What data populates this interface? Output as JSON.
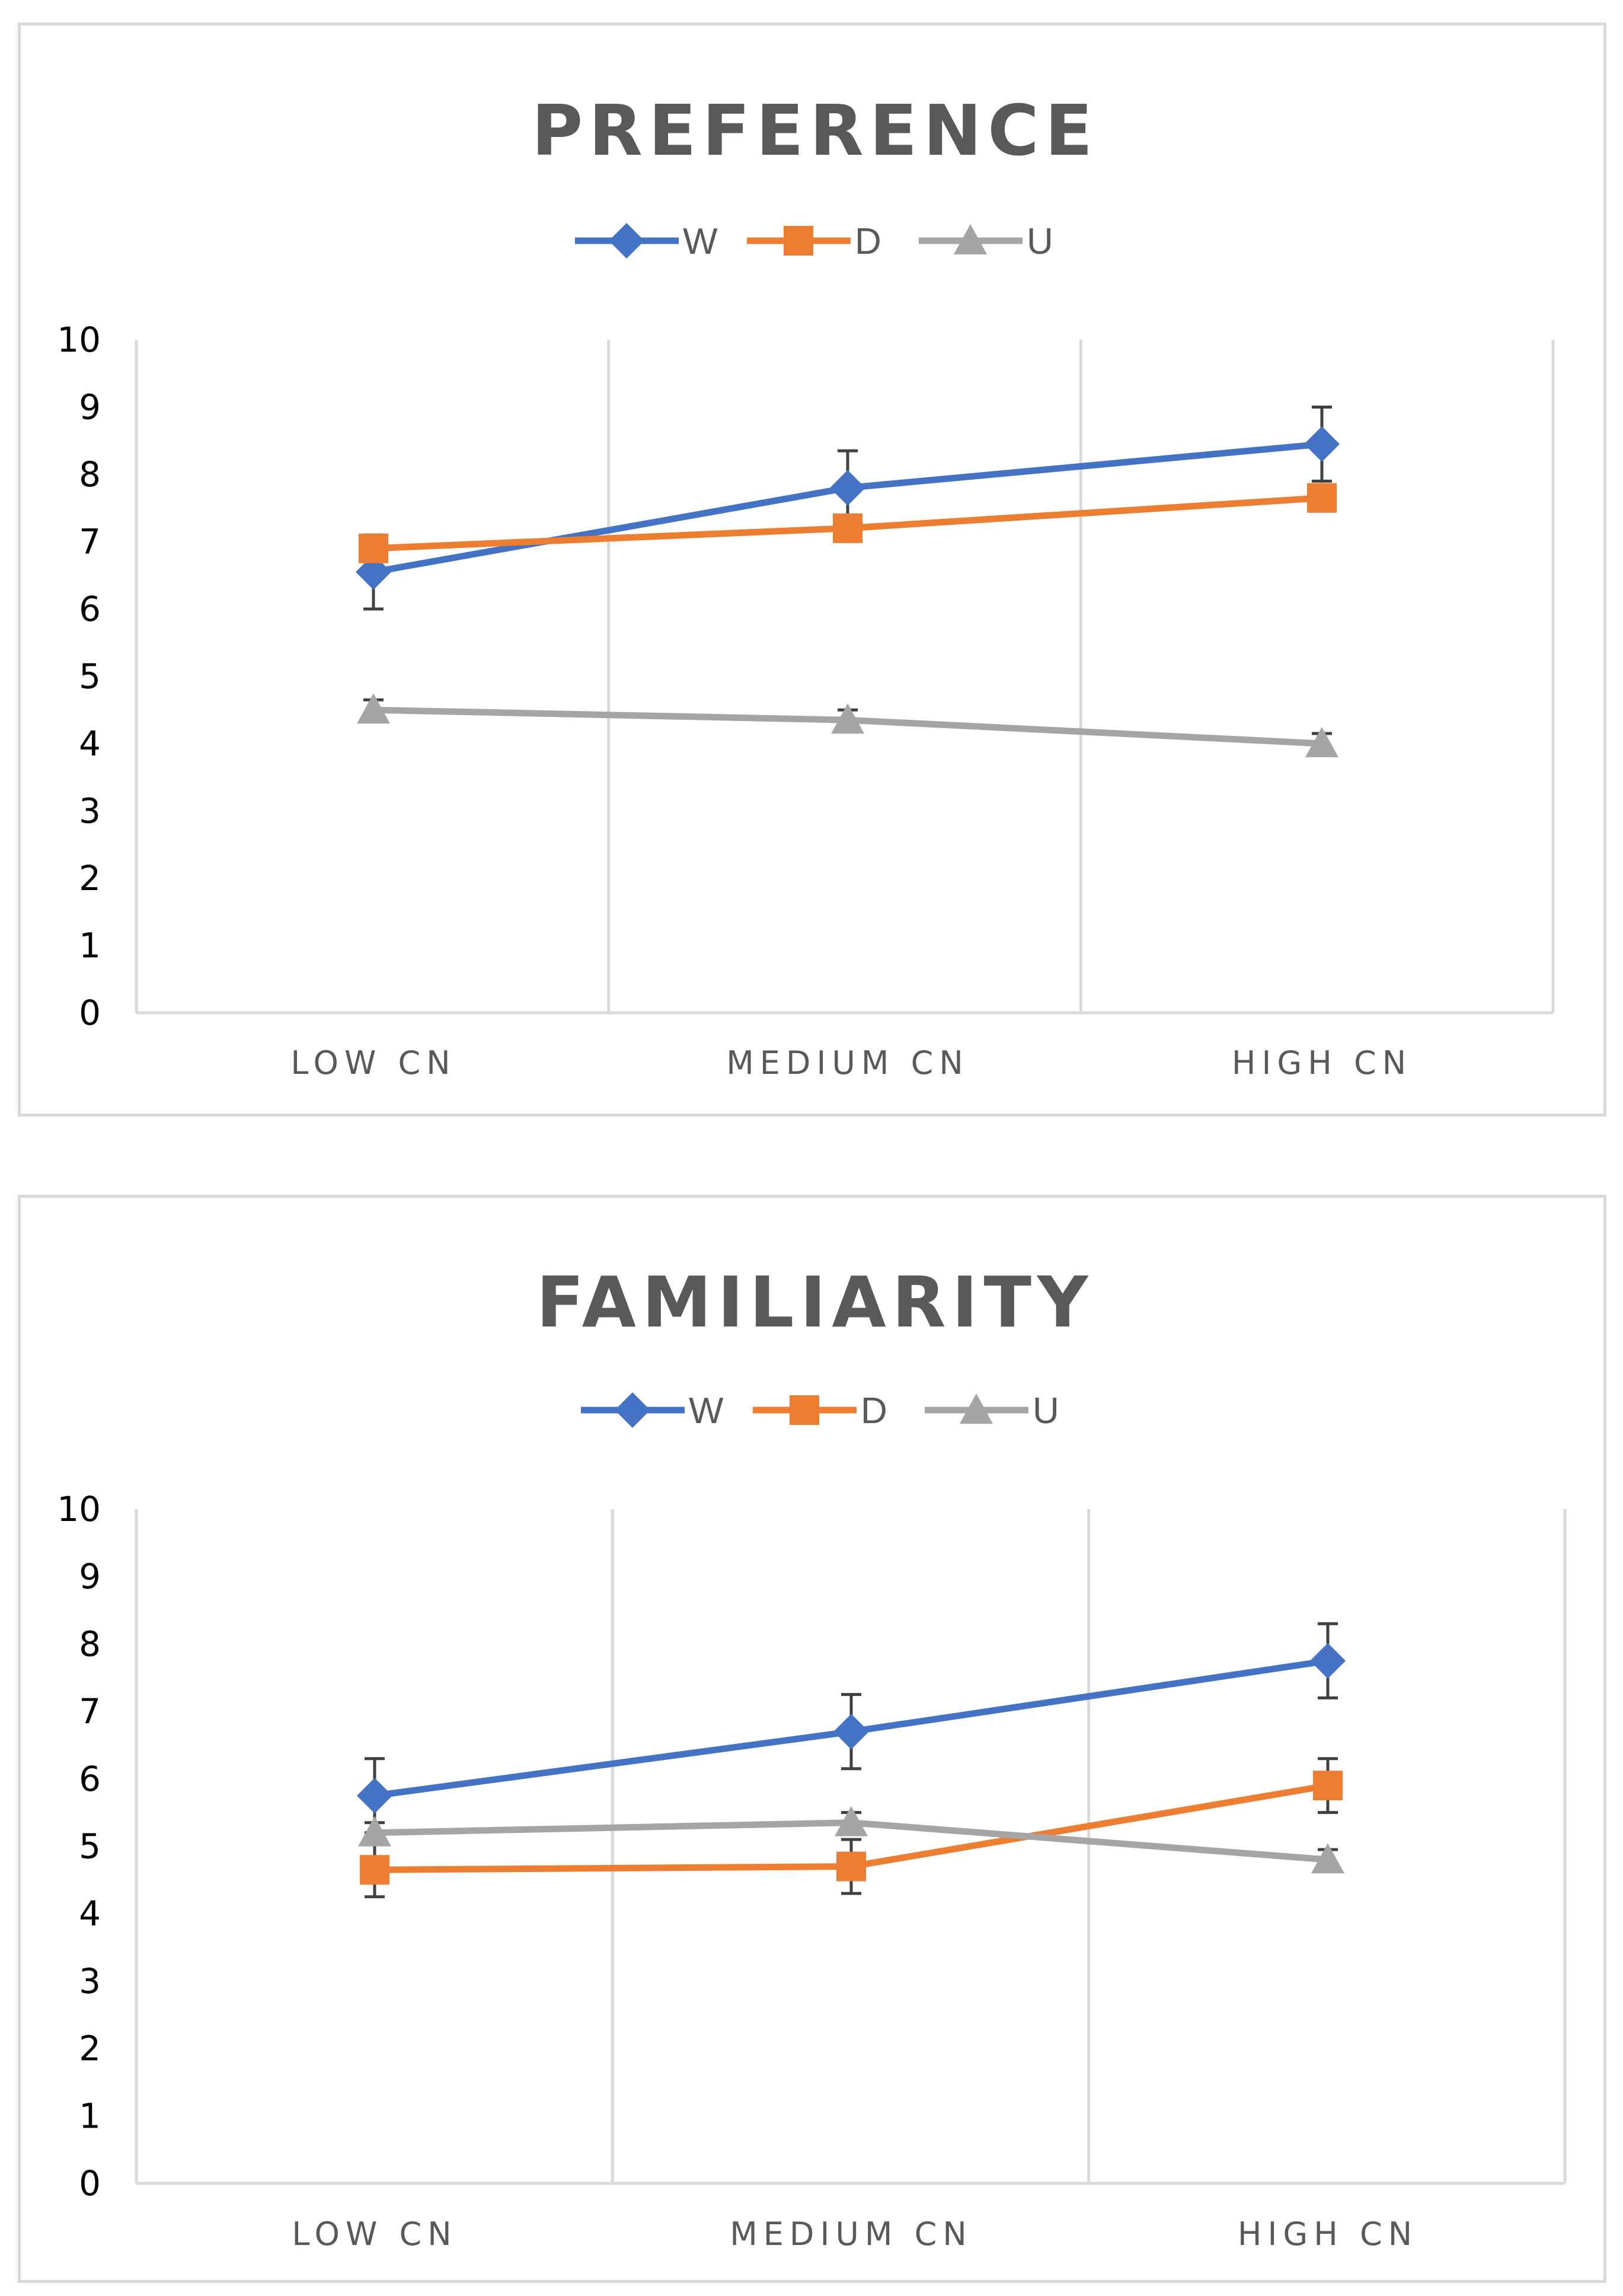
{
  "chart_data": [
    {
      "type": "line",
      "title": "PREFERENCE",
      "categories": [
        "LOW CN",
        "MEDIUM CN",
        "HIGH CN"
      ],
      "ylim": [
        0,
        10
      ],
      "yticks": [
        "0",
        "1",
        "2",
        "3",
        "4",
        "5",
        "6",
        "7",
        "8",
        "9",
        "10"
      ],
      "grid": "vertical",
      "legend_position": "top",
      "series": [
        {
          "name": "W",
          "color": "#4472C4",
          "marker": "diamond",
          "values": [
            6.55,
            7.8,
            8.45
          ],
          "errors": [
            0.55,
            0.55,
            0.55
          ]
        },
        {
          "name": "D",
          "color": "#ED7D31",
          "marker": "square",
          "values": [
            6.9,
            7.2,
            7.65
          ],
          "errors": [
            0.0,
            0.0,
            0.0
          ]
        },
        {
          "name": "U",
          "color": "#A5A5A5",
          "marker": "triangle",
          "values": [
            4.5,
            4.35,
            4.0
          ],
          "errors": [
            0.15,
            0.15,
            0.15
          ]
        }
      ]
    },
    {
      "type": "line",
      "title": "FAMILIARITY",
      "categories": [
        "LOW CN",
        "MEDIUM CN",
        "HIGH CN"
      ],
      "ylim": [
        0,
        10
      ],
      "yticks": [
        "0",
        "1",
        "2",
        "3",
        "4",
        "5",
        "6",
        "7",
        "8",
        "9",
        "10"
      ],
      "grid": "vertical",
      "legend_position": "top",
      "series": [
        {
          "name": "W",
          "color": "#4472C4",
          "marker": "diamond",
          "values": [
            5.75,
            6.7,
            7.75
          ],
          "errors": [
            0.55,
            0.55,
            0.55
          ]
        },
        {
          "name": "D",
          "color": "#ED7D31",
          "marker": "square",
          "values": [
            4.65,
            4.7,
            5.9
          ],
          "errors": [
            0.4,
            0.4,
            0.4
          ]
        },
        {
          "name": "U",
          "color": "#A5A5A5",
          "marker": "triangle",
          "values": [
            5.2,
            5.35,
            4.8
          ],
          "errors": [
            0.15,
            0.15,
            0.15
          ]
        }
      ]
    }
  ]
}
